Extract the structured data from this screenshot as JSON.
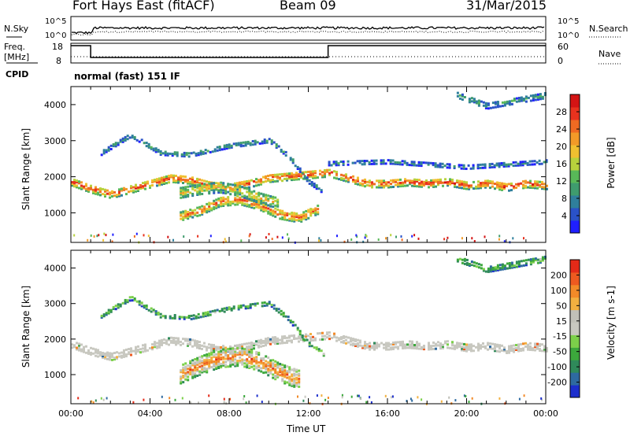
{
  "header": {
    "station": "Fort Hays East (fitACF)",
    "beam": "Beam 09",
    "date": "31/Mar/2015"
  },
  "panels": {
    "nsky_label": "N.Sky",
    "nsky_ticks": [
      "10^5",
      "10^0"
    ],
    "nsearch_label": "N.Search",
    "nsearch_ticks": [
      "10^5",
      "10^0"
    ],
    "freq_label_line1": "Freq.",
    "freq_label_line2": "[MHz]",
    "freq_ticks": [
      "18",
      "8"
    ],
    "nave_label": "Nave",
    "nave_ticks": [
      "60",
      "0"
    ],
    "cpid_label": "CPID",
    "cpid_text": "normal (fast) 151 IF"
  },
  "chart_data": [
    {
      "type": "heatmap",
      "name": "power",
      "ylabel": "Slant Range [km]",
      "yticks": [
        1000,
        2000,
        3000,
        4000
      ],
      "ylim": [
        180,
        4500
      ],
      "xlim": [
        0,
        24
      ],
      "colorbar": {
        "title": "Power [dB]",
        "ticks": [
          "4",
          "8",
          "12",
          "16",
          "20",
          "24",
          "28"
        ],
        "colors": [
          "#1f1fff",
          "#2a52c8",
          "#2f7f9c",
          "#3f9c6e",
          "#58b858",
          "#b8d23c",
          "#f0c030",
          "#f29a28",
          "#ef6a22",
          "#e8321e",
          "#d41414"
        ]
      },
      "bands": [
        {
          "range": [
            [
              0.0,
              1900
            ],
            [
              1.0,
              1700
            ],
            [
              2.0,
              1550
            ],
            [
              3.0,
              1700
            ],
            [
              4.0,
              1850
            ],
            [
              5.0,
              2000
            ],
            [
              6.0,
              1950
            ],
            [
              7.0,
              1800
            ],
            [
              8.0,
              1750
            ],
            [
              9.0,
              1850
            ],
            [
              10.0,
              2000
            ],
            [
              11.0,
              2050
            ],
            [
              12.0,
              2100
            ],
            [
              13.0,
              2150
            ],
            [
              14.0,
              2000
            ],
            [
              15.0,
              1850
            ],
            [
              16.0,
              1850
            ],
            [
              17.0,
              1900
            ],
            [
              18.0,
              1850
            ],
            [
              19.0,
              1900
            ],
            [
              20.0,
              1800
            ],
            [
              21.0,
              1850
            ],
            [
              22.0,
              1750
            ],
            [
              23.0,
              1850
            ],
            [
              24.0,
              1800
            ]
          ],
          "width": 220,
          "level": 0.78
        },
        {
          "range": [
            [
              5.5,
              950
            ],
            [
              6.5,
              1100
            ],
            [
              7.5,
              1350
            ],
            [
              8.5,
              1400
            ],
            [
              9.5,
              1250
            ],
            [
              10.5,
              1000
            ],
            [
              11.5,
              900
            ],
            [
              12.5,
              1150
            ]
          ],
          "width": 260,
          "level": 0.7
        },
        {
          "range": [
            [
              5.5,
              1600
            ],
            [
              6.5,
              1700
            ],
            [
              7.5,
              1750
            ],
            [
              8.5,
              1650
            ],
            [
              9.5,
              1450
            ],
            [
              10.5,
              1300
            ]
          ],
          "width": 300,
          "level": 0.55
        },
        {
          "range": [
            [
              1.5,
              2700
            ],
            [
              3.0,
              3200
            ],
            [
              4.5,
              2700
            ],
            [
              6.0,
              2650
            ],
            [
              8.0,
              2900
            ],
            [
              10.0,
              3050
            ],
            [
              11.0,
              2600
            ],
            [
              12.0,
              1900
            ],
            [
              12.8,
              1600
            ]
          ],
          "width": 120,
          "level": 0.3
        },
        {
          "range": [
            [
              13.0,
              2400
            ],
            [
              16.0,
              2450
            ],
            [
              20.0,
              2300
            ],
            [
              24.0,
              2450
            ]
          ],
          "width": 100,
          "level": 0.25
        },
        {
          "range": [
            [
              19.5,
              4300
            ],
            [
              21.0,
              4000
            ],
            [
              22.5,
              4150
            ],
            [
              24.0,
              4300
            ]
          ],
          "width": 160,
          "level": 0.3
        }
      ]
    },
    {
      "type": "heatmap",
      "name": "velocity",
      "xlabel": "Time UT",
      "xticks": [
        "00:00",
        "04:00",
        "08:00",
        "12:00",
        "16:00",
        "20:00",
        "00:00"
      ],
      "ylabel": "Slant Range [km]",
      "yticks": [
        1000,
        2000,
        3000,
        4000
      ],
      "ylim": [
        180,
        4500
      ],
      "xlim": [
        0,
        24
      ],
      "colorbar": {
        "title": "Velocity [m s-1]",
        "ticks": [
          "200",
          "100",
          "50",
          "15",
          "-15",
          "-50",
          "-100",
          "-200"
        ],
        "colors": [
          "#1c2ecc",
          "#2e6aa0",
          "#2f8a5a",
          "#3ca83c",
          "#7cd04a",
          "#c8c8c0",
          "#c0c0b8",
          "#f2b040",
          "#f28a28",
          "#ee5a20",
          "#e42a18"
        ]
      },
      "bands": [
        {
          "range": [
            [
              0.0,
              1900
            ],
            [
              1.0,
              1700
            ],
            [
              2.0,
              1550
            ],
            [
              3.0,
              1700
            ],
            [
              4.0,
              1850
            ],
            [
              5.0,
              2000
            ],
            [
              6.0,
              1950
            ],
            [
              7.0,
              1800
            ],
            [
              8.0,
              1750
            ],
            [
              9.0,
              1850
            ],
            [
              10.0,
              2000
            ],
            [
              11.0,
              2050
            ],
            [
              12.0,
              2100
            ],
            [
              13.0,
              2150
            ],
            [
              14.0,
              2000
            ],
            [
              15.0,
              1850
            ],
            [
              16.0,
              1850
            ],
            [
              17.0,
              1900
            ],
            [
              18.0,
              1850
            ],
            [
              19.0,
              1900
            ],
            [
              20.0,
              1800
            ],
            [
              21.0,
              1850
            ],
            [
              22.0,
              1750
            ],
            [
              23.0,
              1850
            ],
            [
              24.0,
              1800
            ]
          ],
          "width": 220,
          "level": 0.42
        },
        {
          "range": [
            [
              5.5,
              1050
            ],
            [
              6.5,
              1300
            ],
            [
              7.5,
              1500
            ],
            [
              8.5,
              1550
            ],
            [
              9.5,
              1400
            ],
            [
              10.5,
              1100
            ],
            [
              11.5,
              900
            ]
          ],
          "width": 520,
          "level": 0.72
        },
        {
          "range": [
            [
              1.5,
              2700
            ],
            [
              3.0,
              3200
            ],
            [
              4.5,
              2700
            ],
            [
              6.0,
              2650
            ],
            [
              8.0,
              2900
            ],
            [
              10.0,
              3050
            ],
            [
              11.0,
              2600
            ],
            [
              12.0,
              1900
            ],
            [
              12.8,
              1600
            ]
          ],
          "width": 120,
          "level": 0.35
        },
        {
          "range": [
            [
              19.5,
              4300
            ],
            [
              21.0,
              4000
            ],
            [
              22.5,
              4150
            ],
            [
              24.0,
              4300
            ]
          ],
          "width": 160,
          "level": 0.35
        }
      ]
    }
  ]
}
